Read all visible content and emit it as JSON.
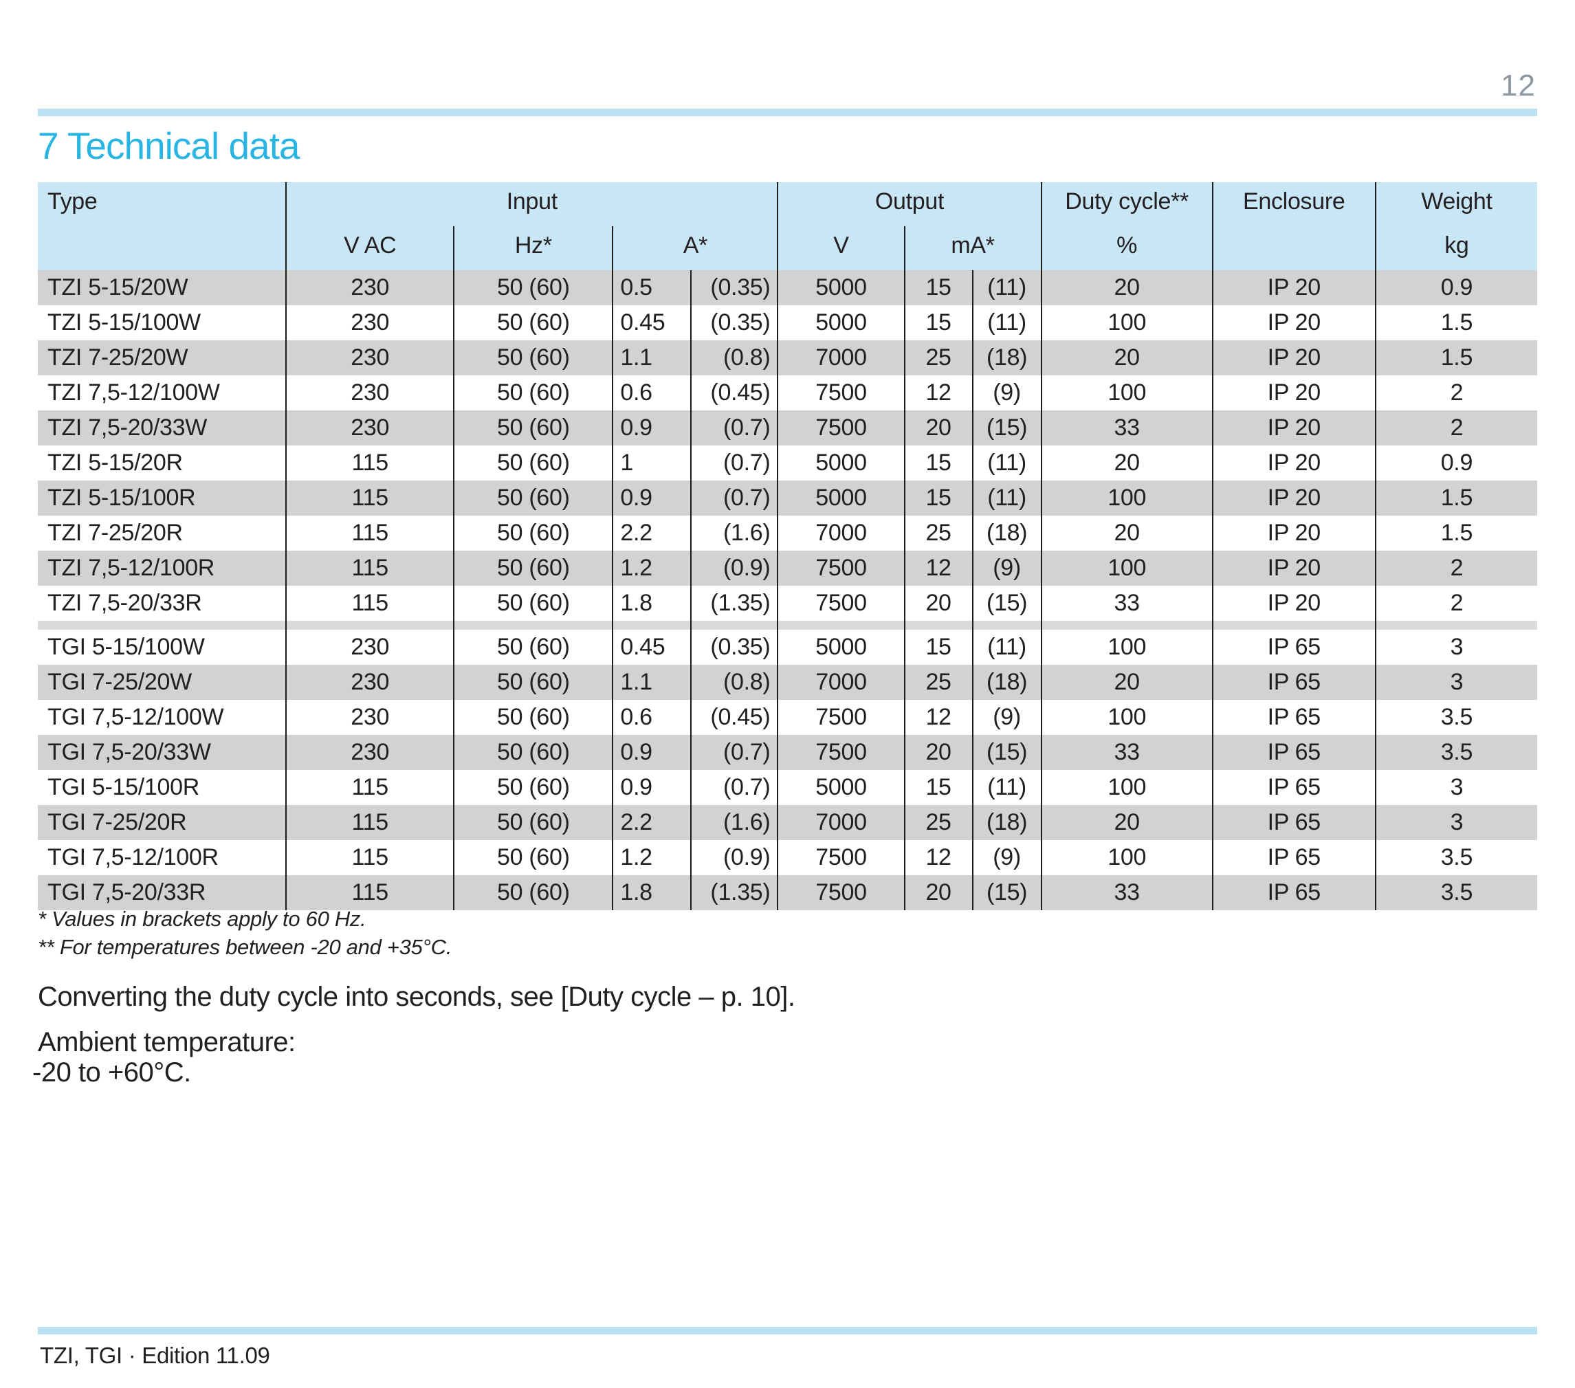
{
  "page": {
    "number": "12",
    "title": "7 Technical data",
    "footer": "TZI, TGI · Edition 11.09"
  },
  "colors": {
    "accent_cyan": "#29b5e3",
    "rule_blue": "#b9e1f1",
    "table_header_blue": "#c8e6f5",
    "row_shade_gray": "#d2d2d2",
    "group_separator_gray": "#dadada",
    "table_line": "#1d1d1b",
    "text": "#231f20",
    "page_number_gray": "#8d969e"
  },
  "table": {
    "header": {
      "type": "Type",
      "input": "Input",
      "v_ac": "V AC",
      "hz": "Hz*",
      "a": "A*",
      "output": "Output",
      "v": "V",
      "ma": "mA*",
      "duty_cycle": "Duty cycle**",
      "duty_unit": "%",
      "enclosure": "Enclosure",
      "weight": "Weight",
      "weight_unit": "kg"
    },
    "columns": [
      "Type",
      "V AC",
      "Hz*",
      "A*",
      "A* (60 Hz)",
      "V",
      "mA*",
      "mA* (60 Hz)",
      "Duty cycle %",
      "Enclosure",
      "Weight kg"
    ],
    "groups": [
      {
        "name": "TZI",
        "rows": [
          [
            "TZI 5-15/20W",
            "230",
            "50 (60)",
            "0.5",
            "(0.35)",
            "5000",
            "15",
            "(11)",
            "20",
            "IP 20",
            "0.9"
          ],
          [
            "TZI 5-15/100W",
            "230",
            "50 (60)",
            "0.45",
            "(0.35)",
            "5000",
            "15",
            "(11)",
            "100",
            "IP 20",
            "1.5"
          ],
          [
            "TZI 7-25/20W",
            "230",
            "50 (60)",
            "1.1",
            "(0.8)",
            "7000",
            "25",
            "(18)",
            "20",
            "IP 20",
            "1.5"
          ],
          [
            "TZI 7,5-12/100W",
            "230",
            "50 (60)",
            "0.6",
            "(0.45)",
            "7500",
            "12",
            "(9)",
            "100",
            "IP 20",
            "2"
          ],
          [
            "TZI 7,5-20/33W",
            "230",
            "50 (60)",
            "0.9",
            "(0.7)",
            "7500",
            "20",
            "(15)",
            "33",
            "IP 20",
            "2"
          ],
          [
            "TZI 5-15/20R",
            "115",
            "50 (60)",
            "1",
            "(0.7)",
            "5000",
            "15",
            "(11)",
            "20",
            "IP 20",
            "0.9"
          ],
          [
            "TZI 5-15/100R",
            "115",
            "50 (60)",
            "0.9",
            "(0.7)",
            "5000",
            "15",
            "(11)",
            "100",
            "IP 20",
            "1.5"
          ],
          [
            "TZI 7-25/20R",
            "115",
            "50 (60)",
            "2.2",
            "(1.6)",
            "7000",
            "25",
            "(18)",
            "20",
            "IP 20",
            "1.5"
          ],
          [
            "TZI 7,5-12/100R",
            "115",
            "50 (60)",
            "1.2",
            "(0.9)",
            "7500",
            "12",
            "(9)",
            "100",
            "IP 20",
            "2"
          ],
          [
            "TZI 7,5-20/33R",
            "115",
            "50 (60)",
            "1.8",
            "(1.35)",
            "7500",
            "20",
            "(15)",
            "33",
            "IP 20",
            "2"
          ]
        ]
      },
      {
        "name": "TGI",
        "rows": [
          [
            "TGI 5-15/100W",
            "230",
            "50 (60)",
            "0.45",
            "(0.35)",
            "5000",
            "15",
            "(11)",
            "100",
            "IP 65",
            "3"
          ],
          [
            "TGI 7-25/20W",
            "230",
            "50 (60)",
            "1.1",
            "(0.8)",
            "7000",
            "25",
            "(18)",
            "20",
            "IP 65",
            "3"
          ],
          [
            "TGI 7,5-12/100W",
            "230",
            "50 (60)",
            "0.6",
            "(0.45)",
            "7500",
            "12",
            "(9)",
            "100",
            "IP 65",
            "3.5"
          ],
          [
            "TGI 7,5-20/33W",
            "230",
            "50 (60)",
            "0.9",
            "(0.7)",
            "7500",
            "20",
            "(15)",
            "33",
            "IP 65",
            "3.5"
          ],
          [
            "TGI 5-15/100R",
            "115",
            "50 (60)",
            "0.9",
            "(0.7)",
            "5000",
            "15",
            "(11)",
            "100",
            "IP 65",
            "3"
          ],
          [
            "TGI 7-25/20R",
            "115",
            "50 (60)",
            "2.2",
            "(1.6)",
            "7000",
            "25",
            "(18)",
            "20",
            "IP 65",
            "3"
          ],
          [
            "TGI 7,5-12/100R",
            "115",
            "50 (60)",
            "1.2",
            "(0.9)",
            "7500",
            "12",
            "(9)",
            "100",
            "IP 65",
            "3.5"
          ],
          [
            "TGI 7,5-20/33R",
            "115",
            "50 (60)",
            "1.8",
            "(1.35)",
            "7500",
            "20",
            "(15)",
            "33",
            "IP 65",
            "3.5"
          ]
        ]
      }
    ]
  },
  "footnotes": {
    "note1": "* Values in brackets apply to 60 Hz.",
    "note2": "** For temperatures between -20 and +35°C."
  },
  "paragraphs": {
    "duty_cycle_ref": "Converting the duty cycle into seconds, see [Duty cycle – p. 10].",
    "ambient_label": "Ambient temperature:",
    "ambient_range": "-20 to +60°C."
  }
}
